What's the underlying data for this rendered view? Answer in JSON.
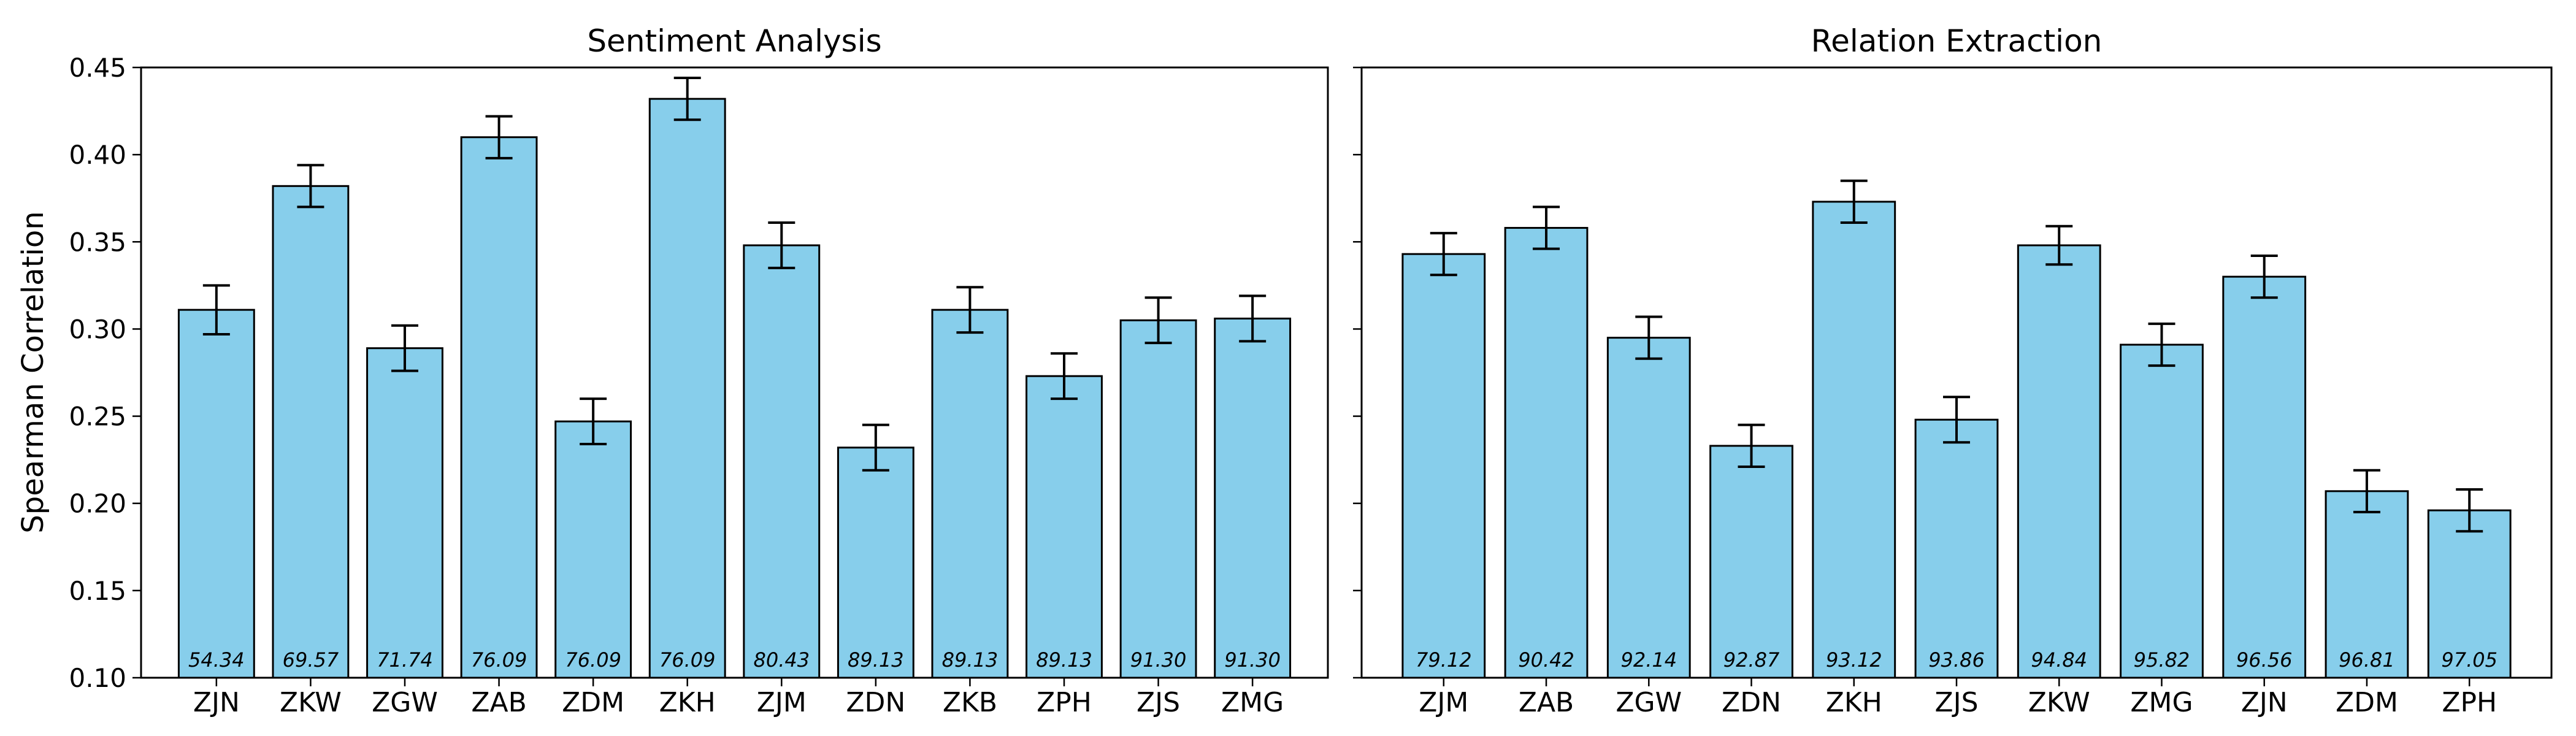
{
  "figure": {
    "ylabel": "Spearman Correlation"
  },
  "chart_data": [
    {
      "type": "bar",
      "title": "Sentiment Analysis",
      "xlabel": "",
      "ylabel": "Spearman Correlation",
      "ylim": [
        0.1,
        0.45
      ],
      "yticks": [
        "0.10",
        "0.15",
        "0.20",
        "0.25",
        "0.30",
        "0.35",
        "0.40",
        "0.45"
      ],
      "categories": [
        "ZJN",
        "ZKW",
        "ZGW",
        "ZAB",
        "ZDM",
        "ZKH",
        "ZJM",
        "ZDN",
        "ZKB",
        "ZPH",
        "ZJS",
        "ZMG"
      ],
      "values": [
        0.311,
        0.382,
        0.289,
        0.41,
        0.247,
        0.432,
        0.348,
        0.232,
        0.311,
        0.273,
        0.305,
        0.306
      ],
      "errors": [
        0.014,
        0.012,
        0.013,
        0.012,
        0.013,
        0.012,
        0.013,
        0.013,
        0.013,
        0.013,
        0.013,
        0.013
      ],
      "bar_labels": [
        "54.34",
        "69.57",
        "71.74",
        "76.09",
        "76.09",
        "76.09",
        "80.43",
        "89.13",
        "89.13",
        "89.13",
        "91.30",
        "91.30"
      ],
      "grid": false,
      "colors": {
        "bar": "#87ceeb",
        "edge": "#000000"
      }
    },
    {
      "type": "bar",
      "title": "Relation Extraction",
      "xlabel": "",
      "ylabel": "",
      "ylim": [
        0.1,
        0.45
      ],
      "categories": [
        "ZJM",
        "ZAB",
        "ZGW",
        "ZDN",
        "ZKH",
        "ZJS",
        "ZKW",
        "ZMG",
        "ZJN",
        "ZDM",
        "ZPH"
      ],
      "values": [
        0.343,
        0.358,
        0.295,
        0.233,
        0.373,
        0.248,
        0.348,
        0.291,
        0.33,
        0.207,
        0.196
      ],
      "errors": [
        0.012,
        0.012,
        0.012,
        0.012,
        0.012,
        0.013,
        0.011,
        0.012,
        0.012,
        0.012,
        0.012
      ],
      "bar_labels": [
        "79.12",
        "90.42",
        "92.14",
        "92.87",
        "93.12",
        "93.86",
        "94.84",
        "95.82",
        "96.56",
        "96.81",
        "97.05"
      ],
      "grid": false,
      "colors": {
        "bar": "#87ceeb",
        "edge": "#000000"
      }
    }
  ]
}
